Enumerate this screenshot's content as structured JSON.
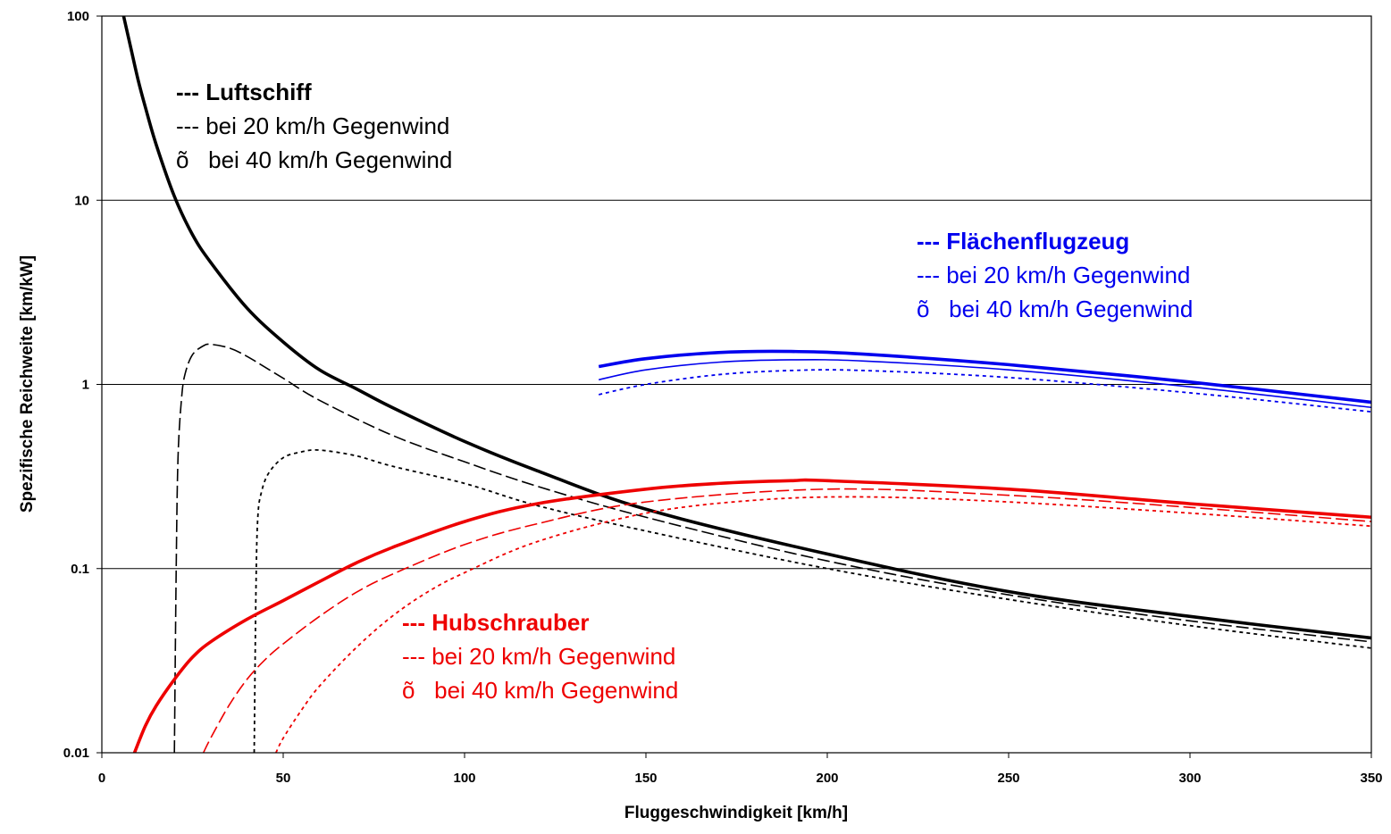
{
  "chart_data": {
    "type": "line",
    "title": "",
    "xlabel": "Fluggeschwindigkeit [km/h]",
    "ylabel": "Spezifische Reichweite [km/kW]",
    "xlim": [
      0,
      350
    ],
    "ylim": [
      0.01,
      100
    ],
    "y_scale": "log",
    "grid": "horizontal",
    "x_ticks": [
      "0",
      "50",
      "100",
      "150",
      "200",
      "250",
      "300",
      "350"
    ],
    "y_ticks": [
      "0.01",
      "0.1",
      "1",
      "10",
      "100"
    ],
    "x_tick_values": [
      0,
      50,
      100,
      150,
      200,
      250,
      300,
      350
    ],
    "y_tick_values": [
      0.01,
      0.1,
      1,
      10,
      100
    ],
    "colors": {
      "luftschiff": "#000000",
      "flaechenflugzeug": "#0000ee",
      "hubschrauber": "#ee0000"
    },
    "legends": [
      {
        "group": "luftschiff",
        "color": "#000000",
        "position": "top-left",
        "lines": [
          "--- Luftschiff",
          "--- bei 20 km/h Gegenwind",
          "õ   bei 40 km/h Gegenwind"
        ]
      },
      {
        "group": "flaechenflugzeug",
        "color": "#0000ee",
        "position": "right",
        "lines": [
          "--- Flächenflugzeug",
          "--- bei 20 km/h Gegenwind",
          "õ   bei 40 km/h Gegenwind"
        ]
      },
      {
        "group": "hubschrauber",
        "color": "#ee0000",
        "position": "bottom-center",
        "lines": [
          "--- Hubschrauber",
          "--- bei 20 km/h Gegenwind",
          "õ   bei 40 km/h Gegenwind"
        ]
      }
    ],
    "series": [
      {
        "group": "luftschiff",
        "style": "thick",
        "color": "#000000",
        "x": [
          6,
          8,
          10,
          12,
          15,
          20,
          25,
          30,
          40,
          50,
          60,
          70,
          80,
          100,
          120,
          150,
          200,
          250,
          300,
          350
        ],
        "y": [
          100,
          67,
          45,
          32,
          20,
          10.5,
          6.5,
          4.6,
          2.6,
          1.7,
          1.2,
          0.95,
          0.75,
          0.49,
          0.34,
          0.21,
          0.12,
          0.075,
          0.055,
          0.042
        ]
      },
      {
        "group": "luftschiff",
        "style": "dash",
        "color": "#000000",
        "x": [
          20,
          20.5,
          21,
          22,
          23,
          25,
          28,
          30,
          35,
          40,
          50,
          60,
          80,
          100,
          120,
          150,
          200,
          250,
          300,
          350
        ],
        "y": [
          0.01,
          0.1,
          0.4,
          0.85,
          1.15,
          1.45,
          1.62,
          1.65,
          1.58,
          1.42,
          1.08,
          0.82,
          0.53,
          0.38,
          0.28,
          0.19,
          0.11,
          0.072,
          0.052,
          0.04
        ]
      },
      {
        "group": "luftschiff",
        "style": "dot",
        "color": "#000000",
        "x": [
          42,
          42.5,
          43,
          44,
          46,
          50,
          55,
          60,
          70,
          80,
          100,
          120,
          150,
          200,
          250,
          300,
          350
        ],
        "y": [
          0.01,
          0.08,
          0.19,
          0.26,
          0.33,
          0.4,
          0.43,
          0.44,
          0.41,
          0.36,
          0.29,
          0.22,
          0.16,
          0.1,
          0.068,
          0.049,
          0.037
        ]
      },
      {
        "group": "hubschrauber",
        "style": "thick",
        "color": "#ee0000",
        "x": [
          9,
          12,
          15,
          20,
          25,
          30,
          40,
          50,
          60,
          70,
          80,
          100,
          120,
          150,
          170,
          190,
          200,
          250,
          300,
          350
        ],
        "y": [
          0.01,
          0.014,
          0.018,
          0.025,
          0.033,
          0.04,
          0.053,
          0.067,
          0.085,
          0.107,
          0.13,
          0.18,
          0.225,
          0.27,
          0.29,
          0.3,
          0.3,
          0.27,
          0.225,
          0.19
        ]
      },
      {
        "group": "hubschrauber",
        "style": "dash",
        "color": "#ee0000",
        "x": [
          28,
          30,
          35,
          40,
          45,
          50,
          60,
          70,
          80,
          100,
          120,
          150,
          200,
          250,
          300,
          350
        ],
        "y": [
          0.01,
          0.012,
          0.018,
          0.025,
          0.032,
          0.039,
          0.055,
          0.074,
          0.093,
          0.135,
          0.175,
          0.23,
          0.27,
          0.25,
          0.215,
          0.18
        ]
      },
      {
        "group": "hubschrauber",
        "style": "dot",
        "color": "#ee0000",
        "x": [
          48,
          50,
          55,
          60,
          70,
          80,
          90,
          100,
          120,
          150,
          180,
          210,
          250,
          300,
          350
        ],
        "y": [
          0.01,
          0.012,
          0.017,
          0.023,
          0.037,
          0.055,
          0.075,
          0.095,
          0.14,
          0.2,
          0.235,
          0.245,
          0.23,
          0.2,
          0.17
        ]
      },
      {
        "group": "flaechenflugzeug",
        "style": "thick",
        "color": "#0000ee",
        "x": [
          137,
          150,
          170,
          190,
          210,
          250,
          300,
          350
        ],
        "y": [
          1.25,
          1.38,
          1.49,
          1.51,
          1.46,
          1.28,
          1.03,
          0.8
        ]
      },
      {
        "group": "flaechenflugzeug",
        "style": "thin",
        "color": "#0000ee",
        "x": [
          137,
          150,
          170,
          190,
          210,
          250,
          300,
          350
        ],
        "y": [
          1.06,
          1.2,
          1.32,
          1.36,
          1.34,
          1.2,
          0.97,
          0.75
        ]
      },
      {
        "group": "flaechenflugzeug",
        "style": "dot",
        "color": "#0000ee",
        "x": [
          137,
          150,
          170,
          190,
          210,
          250,
          300,
          350
        ],
        "y": [
          0.88,
          1.0,
          1.13,
          1.19,
          1.19,
          1.09,
          0.9,
          0.71
        ]
      }
    ]
  }
}
